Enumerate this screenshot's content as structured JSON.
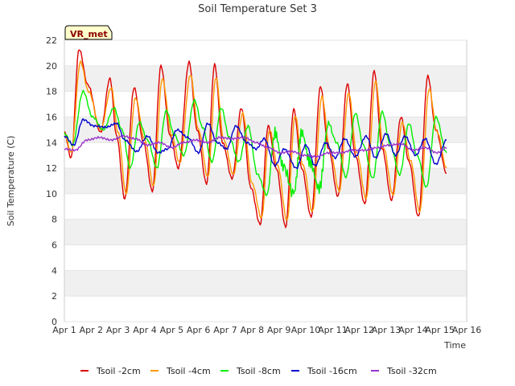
{
  "chart_data": {
    "type": "line",
    "title": "Soil Temperature Set 3",
    "xlabel": "Time",
    "ylabel": "Soil Temperature (C)",
    "badge": "VR_met",
    "x_ticks": [
      "Apr 1",
      "Apr 2",
      "Apr 3",
      "Apr 4",
      "Apr 5",
      "Apr 6",
      "Apr 7",
      "Apr 8",
      "Apr 9",
      "Apr 10",
      "Apr 11",
      "Apr 12",
      "Apr 13",
      "Apr 14",
      "Apr 15",
      "Apr 16"
    ],
    "xlim": [
      0,
      15
    ],
    "ylim": [
      0,
      22
    ],
    "y_ticks": [
      0,
      2,
      4,
      6,
      8,
      10,
      12,
      14,
      16,
      18,
      20,
      22
    ],
    "grid": "horizontal bands",
    "legend_position": "bottom",
    "series": [
      {
        "name": "Tsoil -2cm",
        "color": "#dd0000",
        "x": [
          0,
          0.25,
          0.55,
          0.88,
          1.35,
          1.7,
          1.95,
          2.25,
          2.6,
          2.95,
          3.28,
          3.6,
          3.95,
          4.25,
          4.65,
          4.95,
          5.3,
          5.6,
          5.9,
          6.25,
          6.6,
          6.95,
          7.3,
          7.6,
          7.9,
          8.25,
          8.55,
          8.85,
          9.2,
          9.55,
          9.85,
          10.2,
          10.55,
          10.85,
          11.2,
          11.55,
          11.85,
          12.2,
          12.55,
          12.85,
          13.2,
          13.55,
          13.85,
          14.25
        ],
        "y": [
          14.8,
          12.8,
          21.3,
          18.5,
          14.8,
          19.0,
          14.5,
          9.6,
          18.3,
          14.0,
          10.2,
          20.0,
          14.5,
          12.0,
          20.3,
          15.0,
          10.8,
          20.1,
          14.0,
          11.2,
          16.7,
          10.5,
          7.6,
          15.3,
          12.0,
          7.4,
          16.6,
          12.0,
          8.2,
          18.4,
          13.5,
          9.8,
          18.6,
          13.0,
          9.2,
          19.6,
          13.5,
          9.5,
          16.0,
          12.5,
          8.2,
          19.2,
          15.0,
          11.6
        ]
      },
      {
        "name": "Tsoil -4cm",
        "color": "#ff9900",
        "x": [
          0,
          0.25,
          0.6,
          0.9,
          1.35,
          1.75,
          2.0,
          2.3,
          2.65,
          3.0,
          3.32,
          3.65,
          4.0,
          4.3,
          4.7,
          5.0,
          5.35,
          5.65,
          5.95,
          6.3,
          6.65,
          7.0,
          7.35,
          7.65,
          7.95,
          8.3,
          8.6,
          8.9,
          9.25,
          9.6,
          9.9,
          10.25,
          10.6,
          10.9,
          11.25,
          11.6,
          11.9,
          12.25,
          12.6,
          12.9,
          13.25,
          13.6,
          13.9,
          14.25
        ],
        "y": [
          14.7,
          13.2,
          20.3,
          18.0,
          15.0,
          18.3,
          14.8,
          10.0,
          17.5,
          14.2,
          10.6,
          19.0,
          14.6,
          12.4,
          19.3,
          15.0,
          11.3,
          19.1,
          14.2,
          11.5,
          16.3,
          10.8,
          8.1,
          15.0,
          12.2,
          7.9,
          16.1,
          12.2,
          8.6,
          17.6,
          13.5,
          10.2,
          17.9,
          13.2,
          9.6,
          18.8,
          13.6,
          9.9,
          15.6,
          12.6,
          8.6,
          18.2,
          14.8,
          12.0
        ]
      },
      {
        "name": "Tsoil -8cm",
        "color": "#00ee00",
        "x": [
          0,
          0.3,
          0.7,
          1.05,
          1.45,
          1.85,
          2.15,
          2.45,
          2.8,
          3.1,
          3.45,
          3.8,
          4.1,
          4.45,
          4.85,
          5.15,
          5.5,
          5.85,
          6.15,
          6.5,
          6.85,
          7.2,
          7.55,
          7.85,
          8.15,
          8.55,
          8.85,
          9.15,
          9.5,
          9.85,
          10.15,
          10.5,
          10.85,
          11.15,
          11.5,
          11.85,
          12.15,
          12.5,
          12.85,
          13.15,
          13.5,
          13.85,
          14.25
        ],
        "y": [
          14.7,
          13.8,
          18.0,
          16.0,
          15.0,
          16.7,
          15.0,
          12.0,
          15.6,
          14.2,
          12.0,
          16.5,
          14.6,
          13.0,
          17.3,
          15.2,
          12.5,
          16.7,
          14.4,
          12.5,
          15.3,
          11.5,
          9.9,
          14.8,
          12.2,
          10.0,
          14.8,
          12.5,
          10.4,
          15.5,
          14.0,
          11.3,
          16.3,
          13.8,
          11.2,
          16.4,
          13.8,
          11.5,
          15.5,
          13.0,
          10.5,
          16.0,
          13.2
        ]
      },
      {
        "name": "Tsoil -16cm",
        "color": "#0000cc",
        "x": [
          0,
          0.35,
          0.7,
          1.1,
          1.55,
          1.95,
          2.25,
          2.7,
          3.1,
          3.5,
          3.85,
          4.2,
          4.6,
          5.0,
          5.35,
          5.7,
          6.05,
          6.4,
          6.8,
          7.15,
          7.45,
          7.85,
          8.2,
          8.65,
          9.0,
          9.35,
          9.75,
          10.1,
          10.45,
          10.85,
          11.25,
          11.6,
          12.0,
          12.35,
          12.7,
          13.1,
          13.45,
          13.85,
          14.25
        ],
        "y": [
          14.5,
          13.8,
          15.8,
          15.3,
          15.2,
          15.5,
          14.2,
          13.3,
          14.5,
          13.2,
          13.5,
          15.0,
          14.4,
          13.2,
          15.5,
          14.0,
          13.5,
          15.3,
          14.0,
          13.5,
          14.3,
          12.2,
          13.5,
          12.0,
          13.8,
          12.2,
          14.0,
          12.8,
          14.3,
          12.9,
          14.5,
          12.8,
          14.7,
          13.0,
          14.5,
          13.0,
          14.3,
          12.3,
          14.2
        ]
      },
      {
        "name": "Tsoil -32cm",
        "color": "#9933cc",
        "x": [
          0,
          0.4,
          0.85,
          1.3,
          1.75,
          2.2,
          2.65,
          3.1,
          3.55,
          4.0,
          4.45,
          4.9,
          5.35,
          5.8,
          6.25,
          6.7,
          7.15,
          7.6,
          8.05,
          8.5,
          8.95,
          9.4,
          9.85,
          10.3,
          10.75,
          11.2,
          11.65,
          12.1,
          12.55,
          13.0,
          13.45,
          13.9,
          14.25
        ],
        "y": [
          13.5,
          13.4,
          14.2,
          14.4,
          14.2,
          14.5,
          14.3,
          13.8,
          14.0,
          13.6,
          14.0,
          14.2,
          14.0,
          14.4,
          14.3,
          14.4,
          14.0,
          13.6,
          13.2,
          13.3,
          13.0,
          12.9,
          13.2,
          13.2,
          13.4,
          13.4,
          13.6,
          13.8,
          13.9,
          13.4,
          13.6,
          13.2,
          13.6
        ]
      }
    ]
  }
}
